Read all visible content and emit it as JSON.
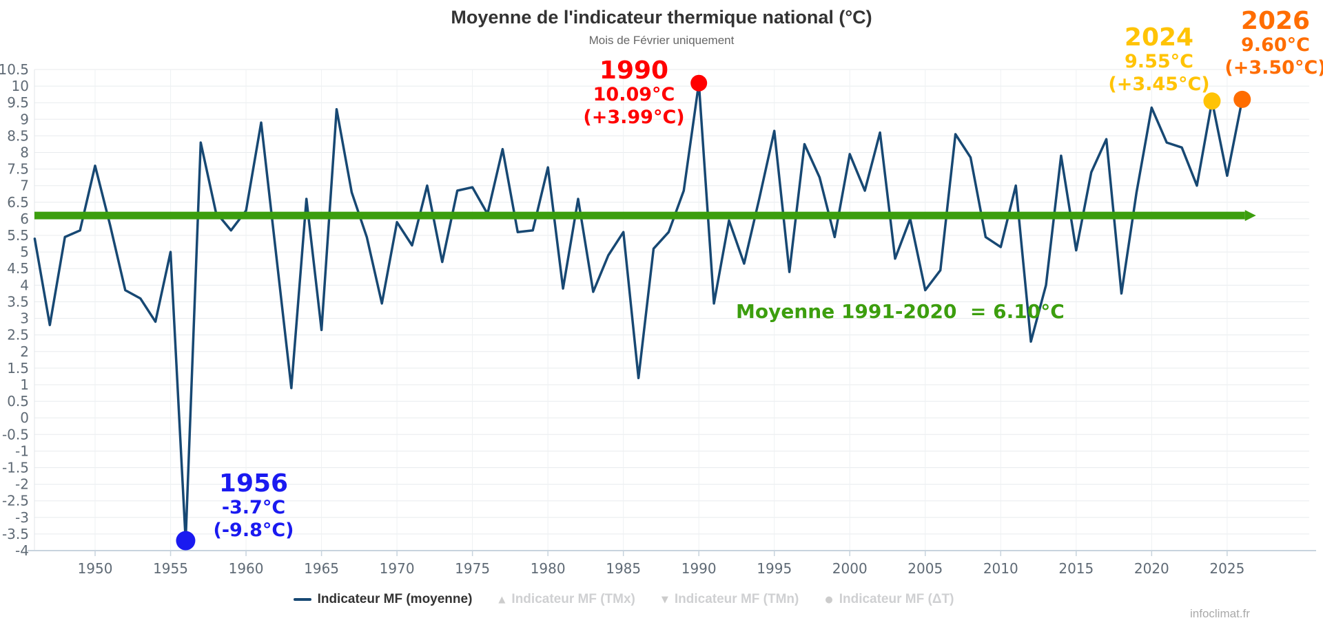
{
  "header": {
    "title": "Moyenne de l'indicateur thermique national (°C)",
    "subtitle": "Mois de Février uniquement"
  },
  "chart_data": {
    "type": "line",
    "series_name": "Indicateur MF (moyenne)",
    "line_color": "#174873",
    "xlabel": "",
    "ylabel": "",
    "ylim": [
      -4,
      10.5
    ],
    "y_tick_step": 0.5,
    "x_ticks": [
      1950,
      1955,
      1960,
      1965,
      1970,
      1975,
      1980,
      1985,
      1990,
      1995,
      2000,
      2005,
      2010,
      2015,
      2020,
      2025
    ],
    "grid": true,
    "legend_position": "bottom",
    "x": [
      1946,
      1947,
      1948,
      1949,
      1950,
      1951,
      1952,
      1953,
      1954,
      1955,
      1956,
      1957,
      1958,
      1959,
      1960,
      1961,
      1962,
      1963,
      1964,
      1965,
      1966,
      1967,
      1968,
      1969,
      1970,
      1971,
      1972,
      1973,
      1974,
      1975,
      1976,
      1977,
      1978,
      1979,
      1980,
      1981,
      1982,
      1983,
      1984,
      1985,
      1986,
      1987,
      1988,
      1989,
      1990,
      1991,
      1992,
      1993,
      1994,
      1995,
      1996,
      1997,
      1998,
      1999,
      2000,
      2001,
      2002,
      2003,
      2004,
      2005,
      2006,
      2007,
      2008,
      2009,
      2010,
      2011,
      2012,
      2013,
      2014,
      2015,
      2016,
      2017,
      2018,
      2019,
      2020,
      2021,
      2022,
      2023,
      2024,
      2025,
      2026
    ],
    "values": [
      5.4,
      2.8,
      5.45,
      5.65,
      7.6,
      5.8,
      3.85,
      3.6,
      2.9,
      5.0,
      -3.7,
      8.3,
      6.2,
      5.65,
      6.25,
      8.9,
      4.9,
      0.9,
      6.6,
      2.65,
      9.3,
      6.8,
      5.45,
      3.45,
      5.9,
      5.2,
      7.0,
      4.7,
      6.85,
      6.95,
      6.15,
      8.1,
      5.6,
      5.65,
      7.55,
      3.9,
      6.6,
      3.8,
      4.9,
      5.6,
      1.2,
      5.1,
      5.6,
      6.85,
      10.09,
      3.45,
      5.95,
      4.65,
      6.6,
      8.65,
      4.4,
      8.25,
      7.25,
      5.45,
      7.95,
      6.85,
      8.6,
      4.8,
      6.0,
      3.85,
      4.45,
      8.55,
      7.85,
      5.45,
      5.15,
      7.0,
      2.3,
      4.0,
      7.9,
      5.05,
      7.4,
      8.4,
      3.75,
      6.8,
      9.35,
      8.3,
      8.15,
      7.0,
      9.55,
      7.3,
      9.6
    ],
    "reference_line": {
      "value": 6.1,
      "label": "Moyenne 1991-2020  = 6.10°C",
      "color": "#3c9e0e"
    },
    "highlights": [
      {
        "year": 1956,
        "value": -3.7,
        "color": "#1a1af0",
        "dot_radius": 14,
        "label_year": "1956",
        "label_temp": "-3.7°C",
        "label_anom": "(-9.8°C)"
      },
      {
        "year": 1990,
        "value": 10.09,
        "color": "#ff0000",
        "dot_radius": 12,
        "label_year": "1990",
        "label_temp": "10.09°C",
        "label_anom": "(+3.99°C)"
      },
      {
        "year": 2024,
        "value": 9.55,
        "color": "#ffc305",
        "dot_radius": 12.5,
        "label_year": "2024",
        "label_temp": "9.55°C",
        "label_anom": "(+3.45°C)"
      },
      {
        "year": 2026,
        "value": 9.6,
        "color": "#ff6d00",
        "dot_radius": 12.5,
        "label_year": "2026",
        "label_temp": "9.60°C",
        "label_anom": "(+3.50°C)"
      }
    ]
  },
  "legend": {
    "active_color": "#333333",
    "inactive_color": "#cfd0d2",
    "items": [
      {
        "label": "Indicateur MF (moyenne)",
        "marker": "line",
        "active": true
      },
      {
        "label": "Indicateur MF (TMx)",
        "marker": "▲",
        "active": false
      },
      {
        "label": "Indicateur MF (TMn)",
        "marker": "▼",
        "active": false
      },
      {
        "label": "Indicateur MF (ΔT)",
        "marker": "●",
        "active": false
      }
    ]
  },
  "watermark": "infoclimat.fr"
}
